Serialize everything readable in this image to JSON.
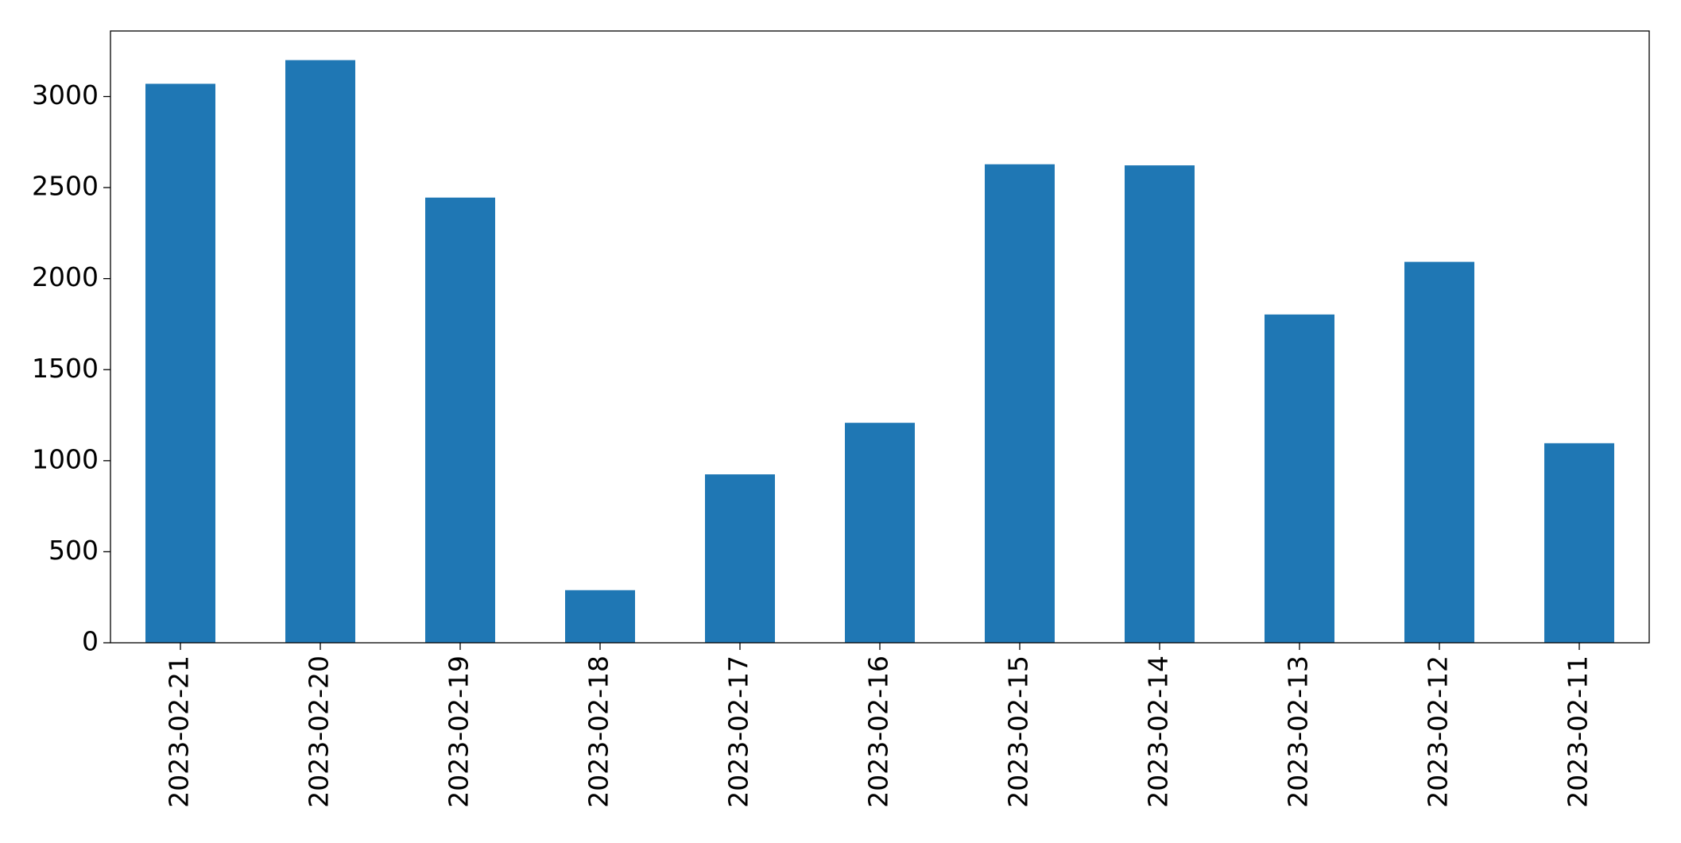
{
  "chart_data": {
    "type": "bar",
    "categories": [
      "2023-02-21",
      "2023-02-20",
      "2023-02-19",
      "2023-02-18",
      "2023-02-17",
      "2023-02-16",
      "2023-02-15",
      "2023-02-14",
      "2023-02-13",
      "2023-02-12",
      "2023-02-11"
    ],
    "values": [
      3070,
      3200,
      2445,
      289,
      925,
      1208,
      2628,
      2622,
      1803,
      2092,
      1096
    ],
    "color": "#1f77b4",
    "ylim": [
      0,
      3360
    ],
    "yticks": [
      0,
      500,
      1000,
      1500,
      2000,
      2500,
      3000
    ],
    "grid": false
  }
}
